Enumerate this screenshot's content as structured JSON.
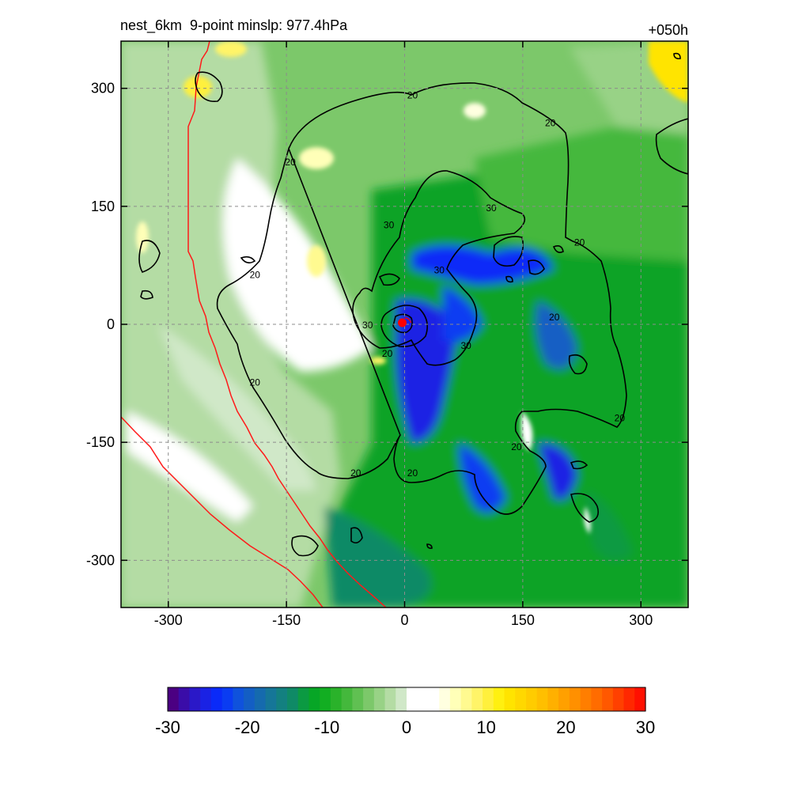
{
  "header": {
    "title_left": "nest_6km  9-point minslp: 977.4hPa",
    "title_right": "+050h"
  },
  "chart_data": {
    "type": "heatmap",
    "x_ticks": [
      -300,
      -150,
      0,
      150,
      300
    ],
    "y_ticks": [
      300,
      150,
      0,
      -150,
      -300
    ],
    "xlim": [
      -360,
      360
    ],
    "ylim": [
      -360,
      360
    ],
    "grid": true,
    "center_marker": {
      "x": -3,
      "y": 2,
      "color": "#ff0000"
    },
    "contour_labels": [
      {
        "text": "20",
        "x": 10,
        "y": 290
      },
      {
        "text": "20",
        "x": 185,
        "y": 255
      },
      {
        "text": "20",
        "x": -145,
        "y": 205
      },
      {
        "text": "30",
        "x": 110,
        "y": 147
      },
      {
        "text": "30",
        "x": -20,
        "y": 125
      },
      {
        "text": "20",
        "x": 222,
        "y": 103
      },
      {
        "text": "20",
        "x": -190,
        "y": 62
      },
      {
        "text": "30",
        "x": 44,
        "y": 68
      },
      {
        "text": "20",
        "x": 190,
        "y": 8
      },
      {
        "text": "30",
        "x": -47,
        "y": -2
      },
      {
        "text": "20",
        "x": -22,
        "y": -38
      },
      {
        "text": "30",
        "x": 78,
        "y": -28
      },
      {
        "text": "20",
        "x": -190,
        "y": -75
      },
      {
        "text": "20",
        "x": 273,
        "y": -120
      },
      {
        "text": "20",
        "x": 142,
        "y": -157
      },
      {
        "text": "20",
        "x": -62,
        "y": -190
      },
      {
        "text": "20",
        "x": 10,
        "y": -190
      }
    ],
    "colorbar": {
      "min": -30,
      "max": 30,
      "tick_labels": [
        "-30",
        "-20",
        "-10",
        "0",
        "10",
        "20",
        "30"
      ],
      "colors": [
        "#4b0082",
        "#3a0ca8",
        "#2a18c8",
        "#1a22e4",
        "#0a2af8",
        "#0a3cf2",
        "#0f52dc",
        "#135ec4",
        "#156aae",
        "#157698",
        "#138080",
        "#0f8a66",
        "#0b9a42",
        "#07a626",
        "#12ae22",
        "#2ab22a",
        "#44b83c",
        "#60c052",
        "#7cc86a",
        "#98d286",
        "#b4dca4",
        "#d0e8c8",
        "#ffffff",
        "#ffffff",
        "#ffffff",
        "#ffffe0",
        "#ffffb8",
        "#fffa90",
        "#fff468",
        "#fff03c",
        "#fff010",
        "#ffe400",
        "#ffd800",
        "#ffcc00",
        "#ffbf00",
        "#ffb000",
        "#ffa000",
        "#ff9000",
        "#ff7e00",
        "#ff6c00",
        "#ff5800",
        "#ff4000",
        "#ff2800",
        "#ff1000"
      ]
    }
  }
}
